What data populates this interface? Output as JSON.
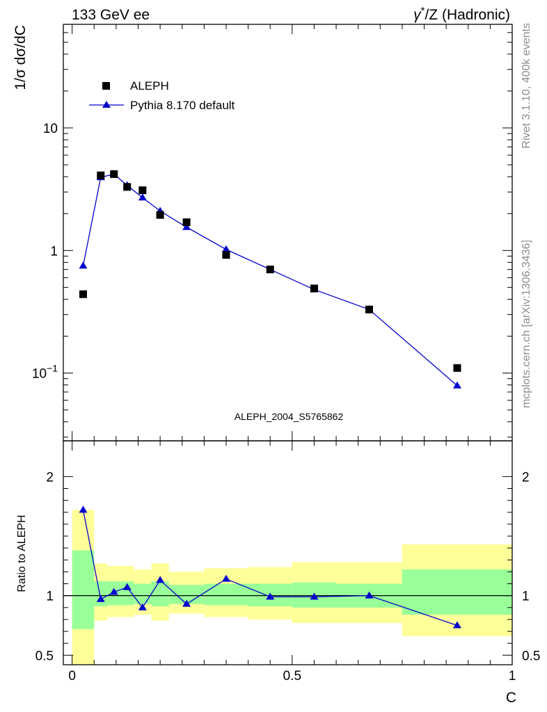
{
  "header": {
    "left": "133 GeV ee",
    "right_base": "γ",
    "right_sup": "*",
    "right_rest": "/Z (Hadronic)"
  },
  "side_text": {
    "rivet": "Rivet 3.1.10,  400k events",
    "mcplots": "mcplots.cern.ch [arXiv:1306.3436]"
  },
  "analysis_id": "ALEPH_2004_S5765862",
  "chart_data": [
    {
      "type": "scatter",
      "panel": "main",
      "ylabel": "1/σ  dσ/dC",
      "yscale": "log",
      "ylim": [
        0.028,
        70
      ],
      "xlim": [
        -0.02,
        1.0
      ],
      "y_ticklabels": [
        {
          "value": 0.1,
          "base": "10",
          "exp": "−1"
        },
        {
          "value": 1,
          "text": "1"
        },
        {
          "value": 10,
          "text": "10"
        }
      ],
      "legend_position": "top-left",
      "series": [
        {
          "name": "ALEPH",
          "marker": "square",
          "color": "#000000",
          "x": [
            0.025,
            0.065,
            0.095,
            0.125,
            0.16,
            0.2,
            0.26,
            0.35,
            0.45,
            0.55,
            0.675,
            0.875
          ],
          "y": [
            0.44,
            4.1,
            4.2,
            3.3,
            3.1,
            1.95,
            1.7,
            0.92,
            0.7,
            0.49,
            0.33,
            0.11
          ]
        },
        {
          "name": "Pythia 8.170 default",
          "marker": "triangle",
          "color": "#0000cc",
          "x": [
            0.025,
            0.065,
            0.095,
            0.125,
            0.16,
            0.2,
            0.26,
            0.35,
            0.45,
            0.55,
            0.675,
            0.875
          ],
          "y": [
            0.75,
            3.95,
            4.2,
            3.4,
            2.7,
            2.1,
            1.55,
            1.02,
            0.7,
            0.48,
            0.33,
            0.079
          ]
        }
      ]
    },
    {
      "type": "line",
      "panel": "ratio",
      "ylabel": "Ratio to ALEPH",
      "xlabel": "C",
      "ylim": [
        0.42,
        2.3
      ],
      "xlim": [
        -0.02,
        1.0
      ],
      "x_ticklabels": [
        "0",
        "0.5",
        "1"
      ],
      "y_ticklabels": [
        "0.5",
        "1",
        "2"
      ],
      "bands": [
        {
          "x0": 0.0,
          "x1": 0.05,
          "inner": [
            0.72,
            1.38
          ],
          "outer": [
            0.0,
            1.72
          ]
        },
        {
          "x0": 0.05,
          "x1": 0.08,
          "inner": [
            0.91,
            1.12
          ],
          "outer": [
            0.79,
            1.27
          ]
        },
        {
          "x0": 0.08,
          "x1": 0.11,
          "inner": [
            0.92,
            1.12
          ],
          "outer": [
            0.82,
            1.25
          ]
        },
        {
          "x0": 0.11,
          "x1": 0.14,
          "inner": [
            0.92,
            1.12
          ],
          "outer": [
            0.82,
            1.25
          ]
        },
        {
          "x0": 0.14,
          "x1": 0.18,
          "inner": [
            0.93,
            1.1
          ],
          "outer": [
            0.84,
            1.22
          ]
        },
        {
          "x0": 0.18,
          "x1": 0.22,
          "inner": [
            0.91,
            1.12
          ],
          "outer": [
            0.79,
            1.27
          ]
        },
        {
          "x0": 0.22,
          "x1": 0.3,
          "inner": [
            0.93,
            1.09
          ],
          "outer": [
            0.85,
            1.2
          ]
        },
        {
          "x0": 0.3,
          "x1": 0.4,
          "inner": [
            0.92,
            1.1
          ],
          "outer": [
            0.82,
            1.23
          ]
        },
        {
          "x0": 0.4,
          "x1": 0.5,
          "inner": [
            0.91,
            1.1
          ],
          "outer": [
            0.8,
            1.24
          ]
        },
        {
          "x0": 0.5,
          "x1": 0.6,
          "inner": [
            0.9,
            1.11
          ],
          "outer": [
            0.77,
            1.28
          ]
        },
        {
          "x0": 0.6,
          "x1": 0.75,
          "inner": [
            0.9,
            1.1
          ],
          "outer": [
            0.77,
            1.28
          ]
        },
        {
          "x0": 0.75,
          "x1": 1.0,
          "inner": [
            0.84,
            1.22
          ],
          "outer": [
            0.66,
            1.43
          ]
        }
      ],
      "series": [
        {
          "name": "Pythia 8.170 default",
          "marker": "triangle",
          "color": "#0000cc",
          "x": [
            0.025,
            0.065,
            0.095,
            0.125,
            0.16,
            0.2,
            0.26,
            0.35,
            0.45,
            0.55,
            0.675,
            0.875
          ],
          "y": [
            1.72,
            0.97,
            1.03,
            1.07,
            0.9,
            1.13,
            0.93,
            1.14,
            0.99,
            0.99,
            1.0,
            0.75
          ]
        }
      ],
      "reference_line": 1.0
    }
  ]
}
